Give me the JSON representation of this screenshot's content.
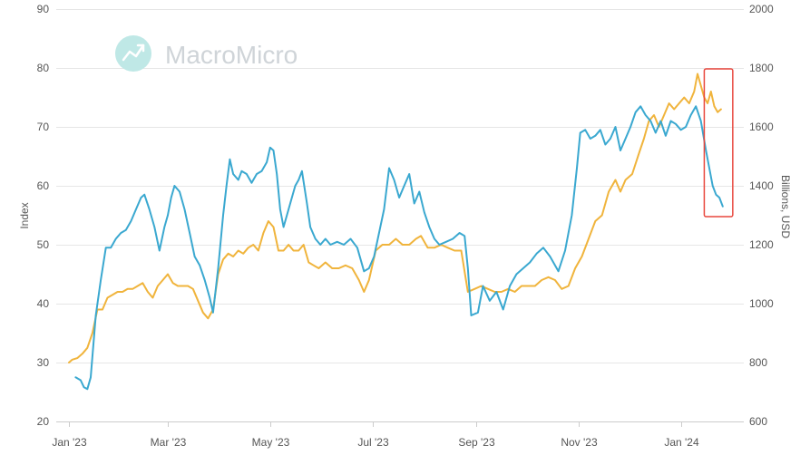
{
  "watermark": {
    "text": "MacroMicro",
    "icon": "macromicro-logo-icon"
  },
  "chart_data": {
    "type": "line",
    "y_left": {
      "label": "Index",
      "range": [
        20,
        90
      ],
      "ticks": [
        20,
        30,
        40,
        50,
        60,
        70,
        80,
        90
      ]
    },
    "y_right": {
      "label": "Billions, USD",
      "range": [
        600,
        2000
      ],
      "ticks": [
        600,
        800,
        1000,
        1200,
        1400,
        1600,
        1800,
        2000
      ]
    },
    "x_axis": {
      "range": [
        "2023-01-01",
        "2024-01-31"
      ],
      "tick_dates": [
        "2023-01-01",
        "2023-03-01",
        "2023-05-01",
        "2023-07-01",
        "2023-09-01",
        "2023-11-01",
        "2024-01-01"
      ],
      "tick_labels": [
        "Jan '23",
        "Mar '23",
        "May '23",
        "Jul '23",
        "Sep '23",
        "Nov '23",
        "Jan '24"
      ]
    },
    "grid": true,
    "highlight": {
      "range": [
        "2024-01-15",
        "2024-02-01"
      ],
      "color": "#e8473d"
    },
    "series": [
      {
        "color": "#3aa8d0",
        "axis": "left",
        "points": [
          [
            "2023-01-05",
            27.5
          ],
          [
            "2023-01-08",
            27
          ],
          [
            "2023-01-10",
            25.8
          ],
          [
            "2023-01-12",
            25.5
          ],
          [
            "2023-01-14",
            27.5
          ],
          [
            "2023-01-17",
            38
          ],
          [
            "2023-01-20",
            44
          ],
          [
            "2023-01-23",
            49.5
          ],
          [
            "2023-01-26",
            49.5
          ],
          [
            "2023-01-29",
            51
          ],
          [
            "2023-02-01",
            52
          ],
          [
            "2023-02-04",
            52.5
          ],
          [
            "2023-02-07",
            54
          ],
          [
            "2023-02-10",
            56
          ],
          [
            "2023-02-13",
            58
          ],
          [
            "2023-02-15",
            58.5
          ],
          [
            "2023-02-18",
            56
          ],
          [
            "2023-02-21",
            53
          ],
          [
            "2023-02-24",
            49
          ],
          [
            "2023-02-27",
            53
          ],
          [
            "2023-03-01",
            55
          ],
          [
            "2023-03-03",
            58
          ],
          [
            "2023-03-05",
            60
          ],
          [
            "2023-03-08",
            59
          ],
          [
            "2023-03-11",
            56
          ],
          [
            "2023-03-14",
            52
          ],
          [
            "2023-03-17",
            48
          ],
          [
            "2023-03-20",
            46.5
          ],
          [
            "2023-03-23",
            44
          ],
          [
            "2023-03-26",
            41
          ],
          [
            "2023-03-28",
            38.5
          ],
          [
            "2023-03-31",
            46
          ],
          [
            "2023-04-03",
            55
          ],
          [
            "2023-04-05",
            60
          ],
          [
            "2023-04-07",
            64.5
          ],
          [
            "2023-04-09",
            62
          ],
          [
            "2023-04-12",
            61
          ],
          [
            "2023-04-14",
            62.5
          ],
          [
            "2023-04-17",
            62
          ],
          [
            "2023-04-20",
            60.5
          ],
          [
            "2023-04-23",
            62
          ],
          [
            "2023-04-26",
            62.5
          ],
          [
            "2023-04-29",
            64
          ],
          [
            "2023-05-01",
            66.5
          ],
          [
            "2023-05-03",
            66
          ],
          [
            "2023-05-05",
            62
          ],
          [
            "2023-05-07",
            56
          ],
          [
            "2023-05-09",
            53
          ],
          [
            "2023-05-11",
            55
          ],
          [
            "2023-05-14",
            58
          ],
          [
            "2023-05-16",
            60
          ],
          [
            "2023-05-18",
            61
          ],
          [
            "2023-05-20",
            62.5
          ],
          [
            "2023-05-23",
            57
          ],
          [
            "2023-05-25",
            53
          ],
          [
            "2023-05-28",
            51
          ],
          [
            "2023-05-31",
            50
          ],
          [
            "2023-06-03",
            51
          ],
          [
            "2023-06-06",
            50
          ],
          [
            "2023-06-10",
            50.5
          ],
          [
            "2023-06-14",
            50
          ],
          [
            "2023-06-18",
            51
          ],
          [
            "2023-06-22",
            49.5
          ],
          [
            "2023-06-26",
            45.5
          ],
          [
            "2023-06-29",
            46
          ],
          [
            "2023-07-02",
            48
          ],
          [
            "2023-07-05",
            52
          ],
          [
            "2023-07-08",
            56
          ],
          [
            "2023-07-11",
            63
          ],
          [
            "2023-07-14",
            61
          ],
          [
            "2023-07-17",
            58
          ],
          [
            "2023-07-20",
            60
          ],
          [
            "2023-07-23",
            62
          ],
          [
            "2023-07-26",
            57
          ],
          [
            "2023-07-29",
            59
          ],
          [
            "2023-08-01",
            55.5
          ],
          [
            "2023-08-04",
            53
          ],
          [
            "2023-08-07",
            51
          ],
          [
            "2023-08-10",
            50
          ],
          [
            "2023-08-14",
            50.5
          ],
          [
            "2023-08-18",
            51
          ],
          [
            "2023-08-22",
            52
          ],
          [
            "2023-08-25",
            51.5
          ],
          [
            "2023-08-27",
            46
          ],
          [
            "2023-08-29",
            38
          ],
          [
            "2023-09-02",
            38.5
          ],
          [
            "2023-09-05",
            43
          ],
          [
            "2023-09-09",
            40.5
          ],
          [
            "2023-09-13",
            42
          ],
          [
            "2023-09-17",
            39
          ],
          [
            "2023-09-21",
            43
          ],
          [
            "2023-09-25",
            45
          ],
          [
            "2023-09-29",
            46
          ],
          [
            "2023-10-03",
            47
          ],
          [
            "2023-10-07",
            48.5
          ],
          [
            "2023-10-11",
            49.5
          ],
          [
            "2023-10-15",
            48
          ],
          [
            "2023-10-20",
            45.5
          ],
          [
            "2023-10-24",
            49
          ],
          [
            "2023-10-28",
            55
          ],
          [
            "2023-10-31",
            63
          ],
          [
            "2023-11-02",
            69
          ],
          [
            "2023-11-05",
            69.5
          ],
          [
            "2023-11-08",
            68
          ],
          [
            "2023-11-11",
            68.5
          ],
          [
            "2023-11-14",
            69.5
          ],
          [
            "2023-11-17",
            67
          ],
          [
            "2023-11-20",
            68
          ],
          [
            "2023-11-23",
            70
          ],
          [
            "2023-11-26",
            66
          ],
          [
            "2023-11-29",
            68
          ],
          [
            "2023-12-02",
            70
          ],
          [
            "2023-12-05",
            72.5
          ],
          [
            "2023-12-08",
            73.5
          ],
          [
            "2023-12-11",
            72
          ],
          [
            "2023-12-14",
            71
          ],
          [
            "2023-12-17",
            69
          ],
          [
            "2023-12-20",
            71
          ],
          [
            "2023-12-23",
            68.5
          ],
          [
            "2023-12-26",
            71
          ],
          [
            "2023-12-29",
            70.5
          ],
          [
            "2024-01-01",
            69.5
          ],
          [
            "2024-01-04",
            70
          ],
          [
            "2024-01-07",
            72
          ],
          [
            "2024-01-10",
            73.5
          ],
          [
            "2024-01-13",
            71
          ],
          [
            "2024-01-16",
            66
          ],
          [
            "2024-01-18",
            63
          ],
          [
            "2024-01-20",
            60
          ],
          [
            "2024-01-22",
            58.5
          ],
          [
            "2024-01-24",
            58
          ],
          [
            "2024-01-26",
            56.5
          ]
        ]
      },
      {
        "color": "#f0b43c",
        "axis": "right",
        "points": [
          [
            "2023-01-01",
            800
          ],
          [
            "2023-01-03",
            810
          ],
          [
            "2023-01-06",
            815
          ],
          [
            "2023-01-09",
            830
          ],
          [
            "2023-01-12",
            850
          ],
          [
            "2023-01-15",
            900
          ],
          [
            "2023-01-18",
            980
          ],
          [
            "2023-01-21",
            980
          ],
          [
            "2023-01-24",
            1020
          ],
          [
            "2023-01-27",
            1030
          ],
          [
            "2023-01-30",
            1040
          ],
          [
            "2023-02-02",
            1040
          ],
          [
            "2023-02-05",
            1050
          ],
          [
            "2023-02-08",
            1050
          ],
          [
            "2023-02-11",
            1060
          ],
          [
            "2023-02-14",
            1070
          ],
          [
            "2023-02-17",
            1040
          ],
          [
            "2023-02-20",
            1020
          ],
          [
            "2023-02-23",
            1060
          ],
          [
            "2023-02-26",
            1080
          ],
          [
            "2023-03-01",
            1100
          ],
          [
            "2023-03-04",
            1070
          ],
          [
            "2023-03-07",
            1060
          ],
          [
            "2023-03-10",
            1060
          ],
          [
            "2023-03-13",
            1060
          ],
          [
            "2023-03-16",
            1050
          ],
          [
            "2023-03-19",
            1010
          ],
          [
            "2023-03-22",
            970
          ],
          [
            "2023-03-25",
            950
          ],
          [
            "2023-03-28",
            980
          ],
          [
            "2023-03-31",
            1100
          ],
          [
            "2023-04-03",
            1150
          ],
          [
            "2023-04-06",
            1170
          ],
          [
            "2023-04-09",
            1160
          ],
          [
            "2023-04-12",
            1180
          ],
          [
            "2023-04-15",
            1170
          ],
          [
            "2023-04-18",
            1190
          ],
          [
            "2023-04-21",
            1200
          ],
          [
            "2023-04-24",
            1180
          ],
          [
            "2023-04-27",
            1240
          ],
          [
            "2023-04-30",
            1280
          ],
          [
            "2023-05-03",
            1260
          ],
          [
            "2023-05-06",
            1180
          ],
          [
            "2023-05-09",
            1180
          ],
          [
            "2023-05-12",
            1200
          ],
          [
            "2023-05-15",
            1180
          ],
          [
            "2023-05-18",
            1180
          ],
          [
            "2023-05-21",
            1200
          ],
          [
            "2023-05-24",
            1140
          ],
          [
            "2023-05-27",
            1130
          ],
          [
            "2023-05-30",
            1120
          ],
          [
            "2023-06-03",
            1140
          ],
          [
            "2023-06-07",
            1120
          ],
          [
            "2023-06-11",
            1120
          ],
          [
            "2023-06-15",
            1130
          ],
          [
            "2023-06-19",
            1120
          ],
          [
            "2023-06-23",
            1080
          ],
          [
            "2023-06-26",
            1040
          ],
          [
            "2023-06-29",
            1080
          ],
          [
            "2023-07-03",
            1180
          ],
          [
            "2023-07-07",
            1200
          ],
          [
            "2023-07-11",
            1200
          ],
          [
            "2023-07-15",
            1220
          ],
          [
            "2023-07-19",
            1200
          ],
          [
            "2023-07-23",
            1200
          ],
          [
            "2023-07-27",
            1220
          ],
          [
            "2023-07-30",
            1230
          ],
          [
            "2023-08-03",
            1190
          ],
          [
            "2023-08-07",
            1190
          ],
          [
            "2023-08-11",
            1200
          ],
          [
            "2023-08-15",
            1190
          ],
          [
            "2023-08-19",
            1180
          ],
          [
            "2023-08-23",
            1180
          ],
          [
            "2023-08-27",
            1040
          ],
          [
            "2023-08-31",
            1050
          ],
          [
            "2023-09-04",
            1060
          ],
          [
            "2023-09-08",
            1050
          ],
          [
            "2023-09-12",
            1040
          ],
          [
            "2023-09-16",
            1040
          ],
          [
            "2023-09-20",
            1050
          ],
          [
            "2023-09-24",
            1040
          ],
          [
            "2023-09-28",
            1060
          ],
          [
            "2023-10-02",
            1060
          ],
          [
            "2023-10-06",
            1060
          ],
          [
            "2023-10-10",
            1080
          ],
          [
            "2023-10-14",
            1090
          ],
          [
            "2023-10-18",
            1080
          ],
          [
            "2023-10-22",
            1050
          ],
          [
            "2023-10-26",
            1060
          ],
          [
            "2023-10-30",
            1120
          ],
          [
            "2023-11-03",
            1160
          ],
          [
            "2023-11-07",
            1220
          ],
          [
            "2023-11-11",
            1280
          ],
          [
            "2023-11-15",
            1300
          ],
          [
            "2023-11-19",
            1380
          ],
          [
            "2023-11-23",
            1420
          ],
          [
            "2023-11-26",
            1380
          ],
          [
            "2023-11-29",
            1420
          ],
          [
            "2023-12-03",
            1440
          ],
          [
            "2023-12-07",
            1510
          ],
          [
            "2023-12-10",
            1560
          ],
          [
            "2023-12-13",
            1620
          ],
          [
            "2023-12-16",
            1640
          ],
          [
            "2023-12-19",
            1600
          ],
          [
            "2023-12-22",
            1640
          ],
          [
            "2023-12-25",
            1680
          ],
          [
            "2023-12-28",
            1660
          ],
          [
            "2023-12-31",
            1680
          ],
          [
            "2024-01-03",
            1700
          ],
          [
            "2024-01-06",
            1680
          ],
          [
            "2024-01-09",
            1720
          ],
          [
            "2024-01-11",
            1780
          ],
          [
            "2024-01-13",
            1740
          ],
          [
            "2024-01-15",
            1700
          ],
          [
            "2024-01-17",
            1680
          ],
          [
            "2024-01-19",
            1720
          ],
          [
            "2024-01-21",
            1670
          ],
          [
            "2024-01-23",
            1650
          ],
          [
            "2024-01-25",
            1660
          ]
        ]
      }
    ]
  }
}
